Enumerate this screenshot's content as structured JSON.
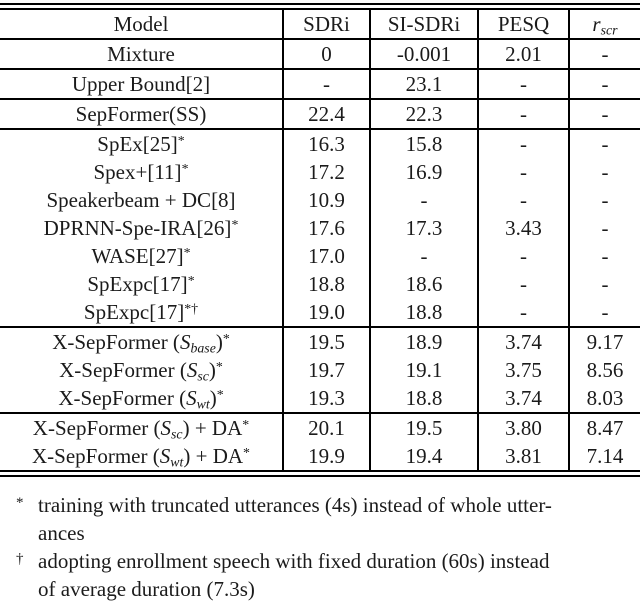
{
  "table": {
    "columns": [
      {
        "label": "Model"
      },
      {
        "label": "SDRi"
      },
      {
        "label": "SI-SDRi"
      },
      {
        "label": "PESQ"
      },
      {
        "segments": [
          {
            "t": "r",
            "f": "i"
          },
          {
            "t": "scr",
            "f": "sub"
          }
        ]
      }
    ],
    "rows": [
      {
        "model": [
          {
            "t": "Mixture"
          }
        ],
        "cells": [
          {
            "v": "0"
          },
          {
            "v": "-0.001"
          },
          {
            "v": "2.01"
          },
          {
            "v": "-"
          }
        ],
        "rule_after": true
      },
      {
        "model": [
          {
            "t": "Upper Bound[2]"
          }
        ],
        "cells": [
          {
            "v": "-"
          },
          {
            "v": "23.1"
          },
          {
            "v": "-"
          },
          {
            "v": "-"
          }
        ],
        "rule_after": true
      },
      {
        "model": [
          {
            "t": "SepFormer(SS)"
          }
        ],
        "cells": [
          {
            "v": "22.4"
          },
          {
            "v": "22.3"
          },
          {
            "v": "-"
          },
          {
            "v": "-"
          }
        ],
        "rule_after": true
      },
      {
        "model": [
          {
            "t": "SpEx[25]"
          },
          {
            "t": "*",
            "f": "sup"
          }
        ],
        "cells": [
          {
            "v": "16.3"
          },
          {
            "v": "15.8"
          },
          {
            "v": "-"
          },
          {
            "v": "-"
          }
        ],
        "rule_after": false
      },
      {
        "model": [
          {
            "t": "Spex+[11]"
          },
          {
            "t": "*",
            "f": "sup"
          }
        ],
        "cells": [
          {
            "v": "17.2"
          },
          {
            "v": "16.9"
          },
          {
            "v": "-"
          },
          {
            "v": "-"
          }
        ],
        "rule_after": false
      },
      {
        "model": [
          {
            "t": "Speakerbeam + DC[8]"
          }
        ],
        "cells": [
          {
            "v": "10.9"
          },
          {
            "v": "-"
          },
          {
            "v": "-"
          },
          {
            "v": "-"
          }
        ],
        "rule_after": false
      },
      {
        "model": [
          {
            "t": "DPRNN-Spe-IRA[26]"
          },
          {
            "t": "*",
            "f": "sup"
          }
        ],
        "cells": [
          {
            "v": "17.6"
          },
          {
            "v": "17.3"
          },
          {
            "v": "3.43"
          },
          {
            "v": "-"
          }
        ],
        "rule_after": false
      },
      {
        "model": [
          {
            "t": "WASE[27]"
          },
          {
            "t": "*",
            "f": "sup"
          }
        ],
        "cells": [
          {
            "v": "17.0"
          },
          {
            "v": "-"
          },
          {
            "v": "-"
          },
          {
            "v": "-"
          }
        ],
        "rule_after": false
      },
      {
        "model": [
          {
            "t": "SpExpc[17]"
          },
          {
            "t": "*",
            "f": "sup"
          }
        ],
        "cells": [
          {
            "v": "18.8"
          },
          {
            "v": "18.6"
          },
          {
            "v": "-"
          },
          {
            "v": "-"
          }
        ],
        "rule_after": false
      },
      {
        "model": [
          {
            "t": "SpExpc[17]"
          },
          {
            "t": "*†",
            "f": "sup"
          }
        ],
        "cells": [
          {
            "v": "19.0"
          },
          {
            "v": "18.8"
          },
          {
            "v": "-"
          },
          {
            "v": "-"
          }
        ],
        "rule_after": true
      },
      {
        "model": [
          {
            "t": "X-SepFormer ("
          },
          {
            "t": "S",
            "f": "i"
          },
          {
            "t": "base",
            "f": "sub"
          },
          {
            "t": ")"
          },
          {
            "t": "*",
            "f": "sup"
          }
        ],
        "cells": [
          {
            "v": "19.5"
          },
          {
            "v": "18.9"
          },
          {
            "v": "3.74"
          },
          {
            "v": "9.17"
          }
        ],
        "rule_after": false
      },
      {
        "model": [
          {
            "t": "X-SepFormer ("
          },
          {
            "t": "S",
            "f": "i"
          },
          {
            "t": "sc",
            "f": "sub"
          },
          {
            "t": ")"
          },
          {
            "t": "*",
            "f": "sup"
          }
        ],
        "cells": [
          {
            "v": "19.7",
            "b": true
          },
          {
            "v": "19.1",
            "b": true
          },
          {
            "v": "3.75",
            "b": true
          },
          {
            "v": "8.56"
          }
        ],
        "rule_after": false
      },
      {
        "model": [
          {
            "t": "X-SepFormer ("
          },
          {
            "t": "S",
            "f": "i"
          },
          {
            "t": "wt",
            "f": "sub"
          },
          {
            "t": ")"
          },
          {
            "t": "*",
            "f": "sup"
          }
        ],
        "cells": [
          {
            "v": "19.3"
          },
          {
            "v": "18.8"
          },
          {
            "v": "3.74"
          },
          {
            "v": "8.03",
            "b": true
          }
        ],
        "rule_after": true
      },
      {
        "model": [
          {
            "t": "X-SepFormer ("
          },
          {
            "t": "S",
            "f": "i"
          },
          {
            "t": "sc",
            "f": "sub"
          },
          {
            "t": ") + DA"
          },
          {
            "t": "*",
            "f": "sup"
          }
        ],
        "cells": [
          {
            "v": "20.1",
            "b": true
          },
          {
            "v": "19.5",
            "b": true
          },
          {
            "v": "3.80"
          },
          {
            "v": "8.47"
          }
        ],
        "rule_after": false
      },
      {
        "model": [
          {
            "t": "X-SepFormer ("
          },
          {
            "t": "S",
            "f": "i"
          },
          {
            "t": "wt",
            "f": "sub"
          },
          {
            "t": ") + DA"
          },
          {
            "t": "*",
            "f": "sup"
          }
        ],
        "cells": [
          {
            "v": "19.9"
          },
          {
            "v": "19.4"
          },
          {
            "v": "3.81",
            "b": true
          },
          {
            "v": "7.14",
            "b": true
          }
        ],
        "rule_after": false
      }
    ]
  },
  "footnotes": [
    {
      "marker": "*",
      "lines": [
        "training with truncated utterances (4s) instead of whole utter-",
        "ances"
      ]
    },
    {
      "marker": "†",
      "lines": [
        "adopting enrollment speech with fixed duration (60s) instead",
        "of average duration (7.3s)"
      ]
    }
  ]
}
